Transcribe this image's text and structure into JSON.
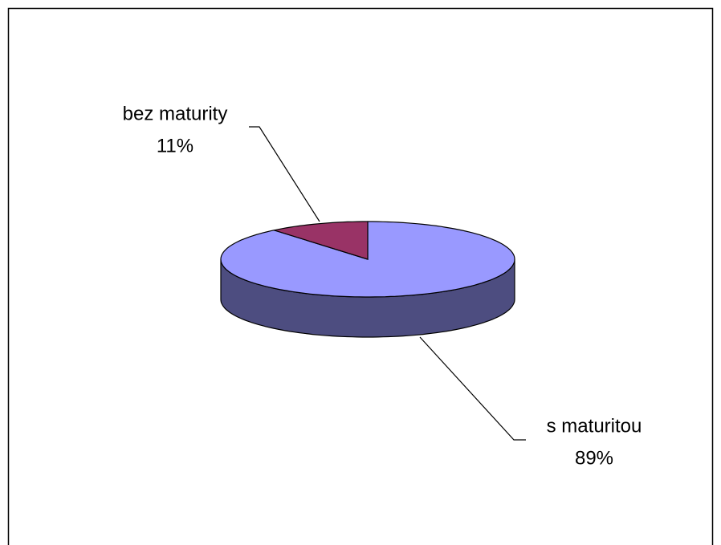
{
  "chart_data": {
    "type": "pie",
    "categories": [
      "s maturitou",
      "bez maturity"
    ],
    "values": [
      89,
      11
    ],
    "value_labels": [
      "89%",
      "11%"
    ],
    "colors": [
      "#9999ff",
      "#993366"
    ]
  }
}
